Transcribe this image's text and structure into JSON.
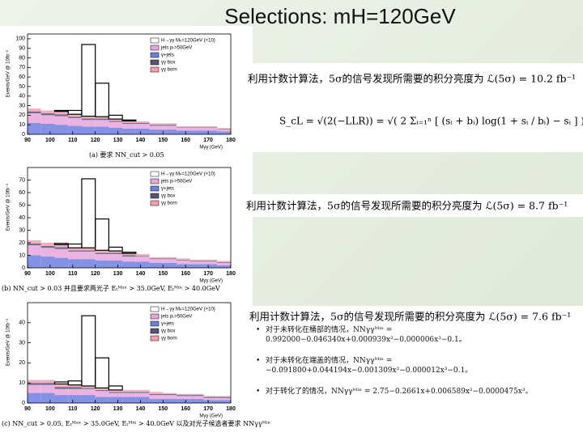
{
  "title": "Selections: mH=120GeV",
  "formula": "S_cL = √(2(−LLR)) = √( 2 Σᵢ₌₁ⁿ [ (sᵢ + bᵢ) log(1 + sᵢ / bᵢ) − sᵢ ] )",
  "results": [
    "利用计数计算法，5σ的信号发现所需要的积分亮度为 ℒ(5σ) = 10.2 fb⁻¹",
    "利用计数计算法，5σ的信号发现所需要的积分亮度为 ℒ(5σ) = 8.7 fb⁻¹",
    "利用计数计算法，5σ的信号发现所需要的积分亮度为 ℒ(5σ) = 7.6 fb⁻¹"
  ],
  "bullets": [
    "对于未转化在桶部的情况，NNγγᴹⁱⁿ = 0.992000−0.046340x+0.000939x²−0.000006x³−0.1。",
    "对于未转化在端盖的情况，NNγγᴹⁱⁿ = −0.091800+0.044194x−0.001309x²−0.000012x³−0.1。",
    "对于转化了的情况，NNγγᴹⁱⁿ = 2.75−0.2661x+0.006589x²−0.0000475x³。"
  ],
  "chart_data": [
    {
      "type": "histogram",
      "caption": "(a) 要求 NN_cut > 0.05",
      "ylabel": "Events/GeV @ 10fb⁻¹",
      "xlabel": "Mγγ (GeV)",
      "bins": [
        90,
        96,
        102,
        108,
        114,
        120,
        126,
        132,
        138,
        144,
        150,
        156,
        162,
        168,
        174,
        180
      ],
      "xlim": [
        90,
        180
      ],
      "xticks": [
        90,
        100,
        110,
        120,
        130,
        140,
        150,
        160,
        170,
        180
      ],
      "ylim": [
        0,
        105
      ],
      "yticks": [
        0,
        10,
        20,
        30,
        40,
        50,
        60,
        70,
        80,
        90,
        100
      ],
      "series": [
        {
          "name": "γ+jets",
          "color": "#6f7fe0",
          "values": [
            12,
            11,
            10,
            9,
            8,
            8,
            7,
            6,
            6,
            5,
            5,
            4,
            4,
            4,
            3
          ]
        },
        {
          "name": "jets pₜ>50GeV",
          "color": "#e8a6dc",
          "values": [
            10,
            9,
            9,
            8,
            7,
            7,
            6,
            5,
            5,
            4,
            4,
            3,
            3,
            3,
            2
          ]
        },
        {
          "name": "γγ box",
          "color": "#55557a",
          "values": [
            2,
            2,
            2,
            1.5,
            1.5,
            1.5,
            1,
            1,
            1,
            1,
            1,
            0.5,
            0.5,
            0.5,
            0.5
          ]
        },
        {
          "name": "γγ born",
          "color": "#f4a0b0",
          "values": [
            3,
            3,
            3,
            2.5,
            2.5,
            2,
            2,
            2,
            1.5,
            1.5,
            1.5,
            1,
            1,
            1,
            1
          ]
        },
        {
          "name": "H→γγ Mₕ=120GeV (×10)",
          "color": "#000000",
          "values": [
            0,
            0,
            1,
            4,
            75,
            35,
            4,
            1,
            0,
            0,
            0,
            0,
            0,
            0,
            0
          ]
        }
      ]
    },
    {
      "type": "histogram",
      "caption": "(b) NN_cut > 0.03 并且要求两光子 Eₜᴹᵃˣ > 35.0GeV, Eₜᴹⁱⁿ > 40.0GeV",
      "ylabel": "Events/GeV @ 10fb⁻¹",
      "xlabel": "Mγγ (GeV)",
      "bins": [
        90,
        96,
        102,
        108,
        114,
        120,
        126,
        132,
        138,
        144,
        150,
        156,
        162,
        168,
        174,
        180
      ],
      "xlim": [
        90,
        180
      ],
      "xticks": [
        90,
        100,
        110,
        120,
        130,
        140,
        150,
        160,
        170,
        180
      ],
      "ylim": [
        0,
        80
      ],
      "yticks": [
        0,
        10,
        20,
        30,
        40,
        50,
        60,
        70
      ],
      "series": [
        {
          "name": "γ+jets",
          "color": "#6f7fe0",
          "values": [
            10,
            9,
            8,
            7,
            7,
            6,
            6,
            5,
            5,
            4,
            4,
            3,
            3,
            3,
            2
          ]
        },
        {
          "name": "jets pₜ>50GeV",
          "color": "#e8a6dc",
          "values": [
            8,
            7,
            7,
            6,
            6,
            5,
            5,
            4,
            4,
            3,
            3,
            3,
            2,
            2,
            2
          ]
        },
        {
          "name": "γγ box",
          "color": "#55557a",
          "values": [
            1.5,
            1.5,
            1.5,
            1,
            1,
            1,
            1,
            1,
            0.5,
            0.5,
            0.5,
            0.5,
            0.5,
            0.5,
            0.5
          ]
        },
        {
          "name": "γγ born",
          "color": "#f4a0b0",
          "values": [
            2.5,
            2.5,
            2,
            2,
            2,
            2,
            1.5,
            1.5,
            1.5,
            1,
            1,
            1,
            1,
            1,
            1
          ]
        },
        {
          "name": "H→γγ Mₕ=120GeV (×10)",
          "color": "#000000",
          "values": [
            0,
            0,
            1,
            3,
            55,
            25,
            3,
            1,
            0,
            0,
            0,
            0,
            0,
            0,
            0
          ]
        }
      ]
    },
    {
      "type": "histogram",
      "caption": "(c) NN_cut > 0.05, Eₜᴹᵃˣ > 35.0GeV, Eₜᴹⁱⁿ > 40.0GeV 以及对光子候选者要求 NNγγᴹⁱⁿ",
      "ylabel": "Events/GeV @ 10fb⁻¹",
      "xlabel": "Mγγ (GeV)",
      "bins": [
        90,
        96,
        102,
        108,
        114,
        120,
        126,
        132,
        138,
        144,
        150,
        156,
        162,
        168,
        174,
        180
      ],
      "xlim": [
        90,
        180
      ],
      "xticks": [
        90,
        100,
        110,
        120,
        130,
        140,
        150,
        160,
        170,
        180
      ],
      "ylim": [
        0,
        50
      ],
      "yticks": [
        0,
        10,
        20,
        30,
        40
      ],
      "series": [
        {
          "name": "γ+jets",
          "color": "#6f7fe0",
          "values": [
            5,
            5,
            4,
            4,
            4,
            3,
            3,
            3,
            3,
            2,
            2,
            2,
            2,
            1.5,
            1.5
          ]
        },
        {
          "name": "jets pₜ>50GeV",
          "color": "#e8a6dc",
          "values": [
            4,
            4,
            3,
            3,
            3,
            3,
            2,
            2,
            2,
            2,
            2,
            1.5,
            1.5,
            1,
            1
          ]
        },
        {
          "name": "γγ box",
          "color": "#55557a",
          "values": [
            1,
            1,
            1,
            1,
            0.5,
            0.5,
            0.5,
            0.5,
            0.5,
            0.5,
            0.5,
            0.5,
            0.5,
            0.5,
            0.5
          ]
        },
        {
          "name": "γγ born",
          "color": "#f4a0b0",
          "values": [
            1.5,
            1.5,
            1.5,
            1,
            1,
            1,
            1,
            1,
            1,
            1,
            0.5,
            0.5,
            0.5,
            0.5,
            0.5
          ]
        },
        {
          "name": "H→γγ Mₕ=120GeV (×10)",
          "color": "#000000",
          "values": [
            0,
            0,
            1,
            2,
            35,
            15,
            2,
            0,
            0,
            0,
            0,
            0,
            0,
            0,
            0
          ]
        }
      ]
    }
  ]
}
